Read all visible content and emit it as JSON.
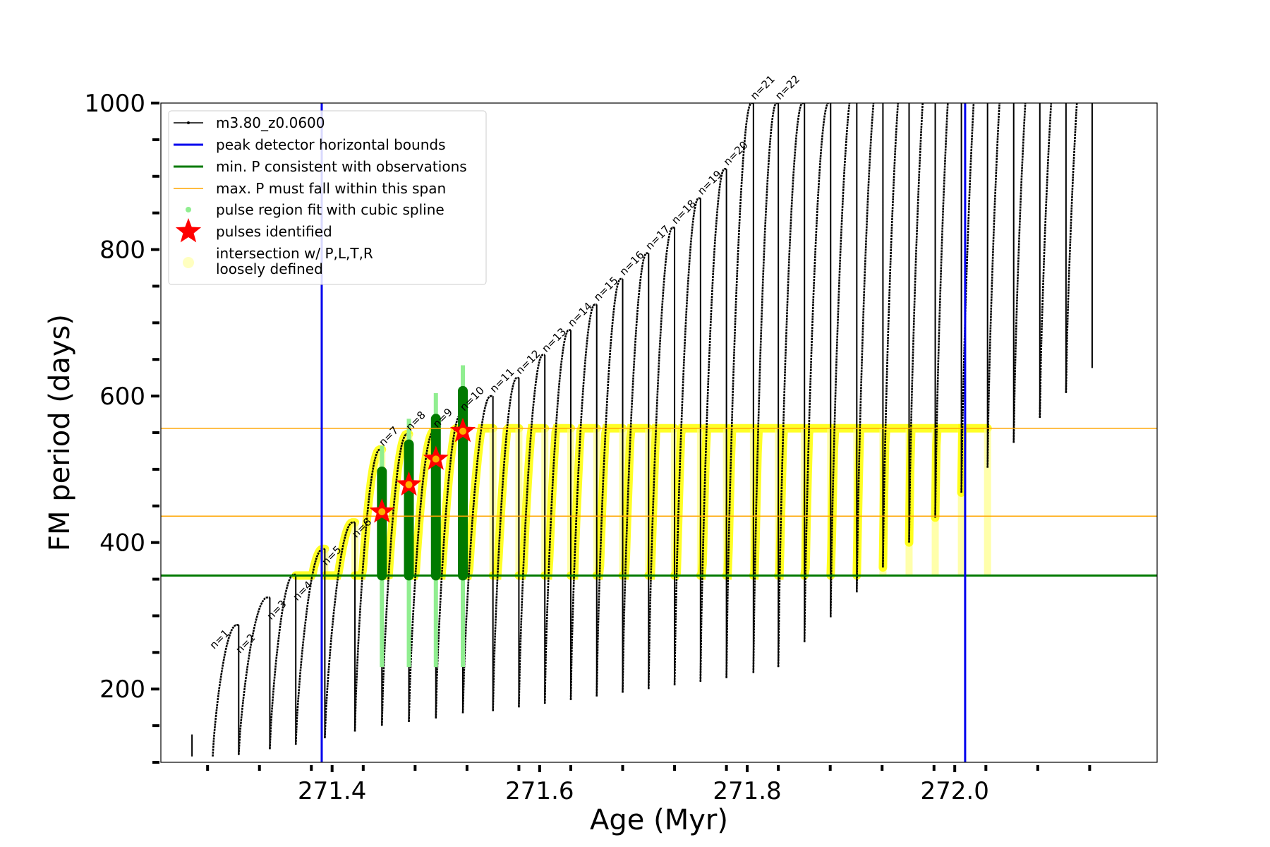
{
  "chart_data": {
    "type": "line",
    "xlabel": "Age (Myr)",
    "ylabel": "FM period (days)",
    "xlim": [
      271.235,
      272.195
    ],
    "ylim": [
      100,
      1000
    ],
    "xticks": [
      271.4,
      271.6,
      271.8,
      272.0
    ],
    "xtick_labels": [
      "271.4",
      "271.6",
      "271.8",
      "272.0"
    ],
    "yticks": [
      200,
      400,
      600,
      800,
      1000
    ],
    "ytick_labels": [
      "200",
      "400",
      "600",
      "800",
      "1000"
    ],
    "grid": false,
    "legend_position": "top-left",
    "legend": [
      {
        "label": "m3.80_z0.0600",
        "kind": "line-marker",
        "color": "#000000"
      },
      {
        "label": "peak detector horizontal bounds",
        "kind": "line",
        "color": "#0000ee"
      },
      {
        "label": "min. P consistent with observations",
        "kind": "line",
        "color": "#007a00"
      },
      {
        "label": "max. P must fall within this span",
        "kind": "thin-line",
        "color": "#ffa500"
      },
      {
        "label": "pulse region fit with cubic spline",
        "kind": "dot",
        "color": "#90ee90"
      },
      {
        "label": "pulses identified",
        "kind": "star",
        "color": "#ff0000"
      },
      {
        "label": "intersection w/ P,L,T,R",
        "kind": "circle",
        "color": "#ffffc0"
      },
      {
        "label": "loosely defined",
        "kind": "text"
      }
    ],
    "vertical_bounds": [
      271.39,
      272.01
    ],
    "min_period": 355,
    "max_period_span": [
      436,
      556
    ],
    "pulses": [
      {
        "n": 1,
        "age": 271.285,
        "max_period": 250,
        "min_period": 108
      },
      {
        "n": 2,
        "age": 271.31,
        "max_period": 244,
        "min_period": 110
      },
      {
        "n": 3,
        "age": 271.34,
        "max_period": 290,
        "min_period": 118
      },
      {
        "n": 4,
        "age": 271.365,
        "max_period": 316,
        "min_period": 124
      },
      {
        "n": 5,
        "age": 271.393,
        "max_period": 364,
        "min_period": 133
      },
      {
        "n": 6,
        "age": 271.422,
        "max_period": 402,
        "min_period": 142
      },
      {
        "n": 7,
        "age": 271.448,
        "max_period": 527,
        "min_period": 150
      },
      {
        "n": 8,
        "age": 271.474,
        "max_period": 548,
        "min_period": 155
      },
      {
        "n": 9,
        "age": 271.5,
        "max_period": 552,
        "min_period": 160
      },
      {
        "n": 10,
        "age": 271.526,
        "max_period": 575,
        "min_period": 167
      },
      {
        "n": 11,
        "age": 271.555,
        "max_period": 600,
        "min_period": 170
      },
      {
        "n": 12,
        "age": 271.58,
        "max_period": 625,
        "min_period": 175
      },
      {
        "n": 13,
        "age": 271.605,
        "max_period": 655,
        "min_period": 180
      },
      {
        "n": 14,
        "age": 271.63,
        "max_period": 690,
        "min_period": 185
      },
      {
        "n": 15,
        "age": 271.655,
        "max_period": 725,
        "min_period": 190
      },
      {
        "n": 16,
        "age": 271.68,
        "max_period": 760,
        "min_period": 195
      },
      {
        "n": 17,
        "age": 271.705,
        "max_period": 795,
        "min_period": 200
      },
      {
        "n": 18,
        "age": 271.73,
        "max_period": 830,
        "min_period": 205
      },
      {
        "n": 19,
        "age": 271.755,
        "max_period": 870,
        "min_period": 210
      },
      {
        "n": 20,
        "age": 271.78,
        "max_period": 910,
        "min_period": 215
      },
      {
        "n": 21,
        "age": 271.806,
        "max_period": 1000,
        "min_period": 222
      },
      {
        "n": 22,
        "age": 271.83,
        "max_period": 1000,
        "min_period": 230
      }
    ],
    "pulses_identified": [
      {
        "age": 271.448,
        "period": 442
      },
      {
        "age": 271.474,
        "period": 479
      },
      {
        "age": 271.5,
        "period": 514
      },
      {
        "age": 271.526,
        "period": 552
      }
    ]
  }
}
